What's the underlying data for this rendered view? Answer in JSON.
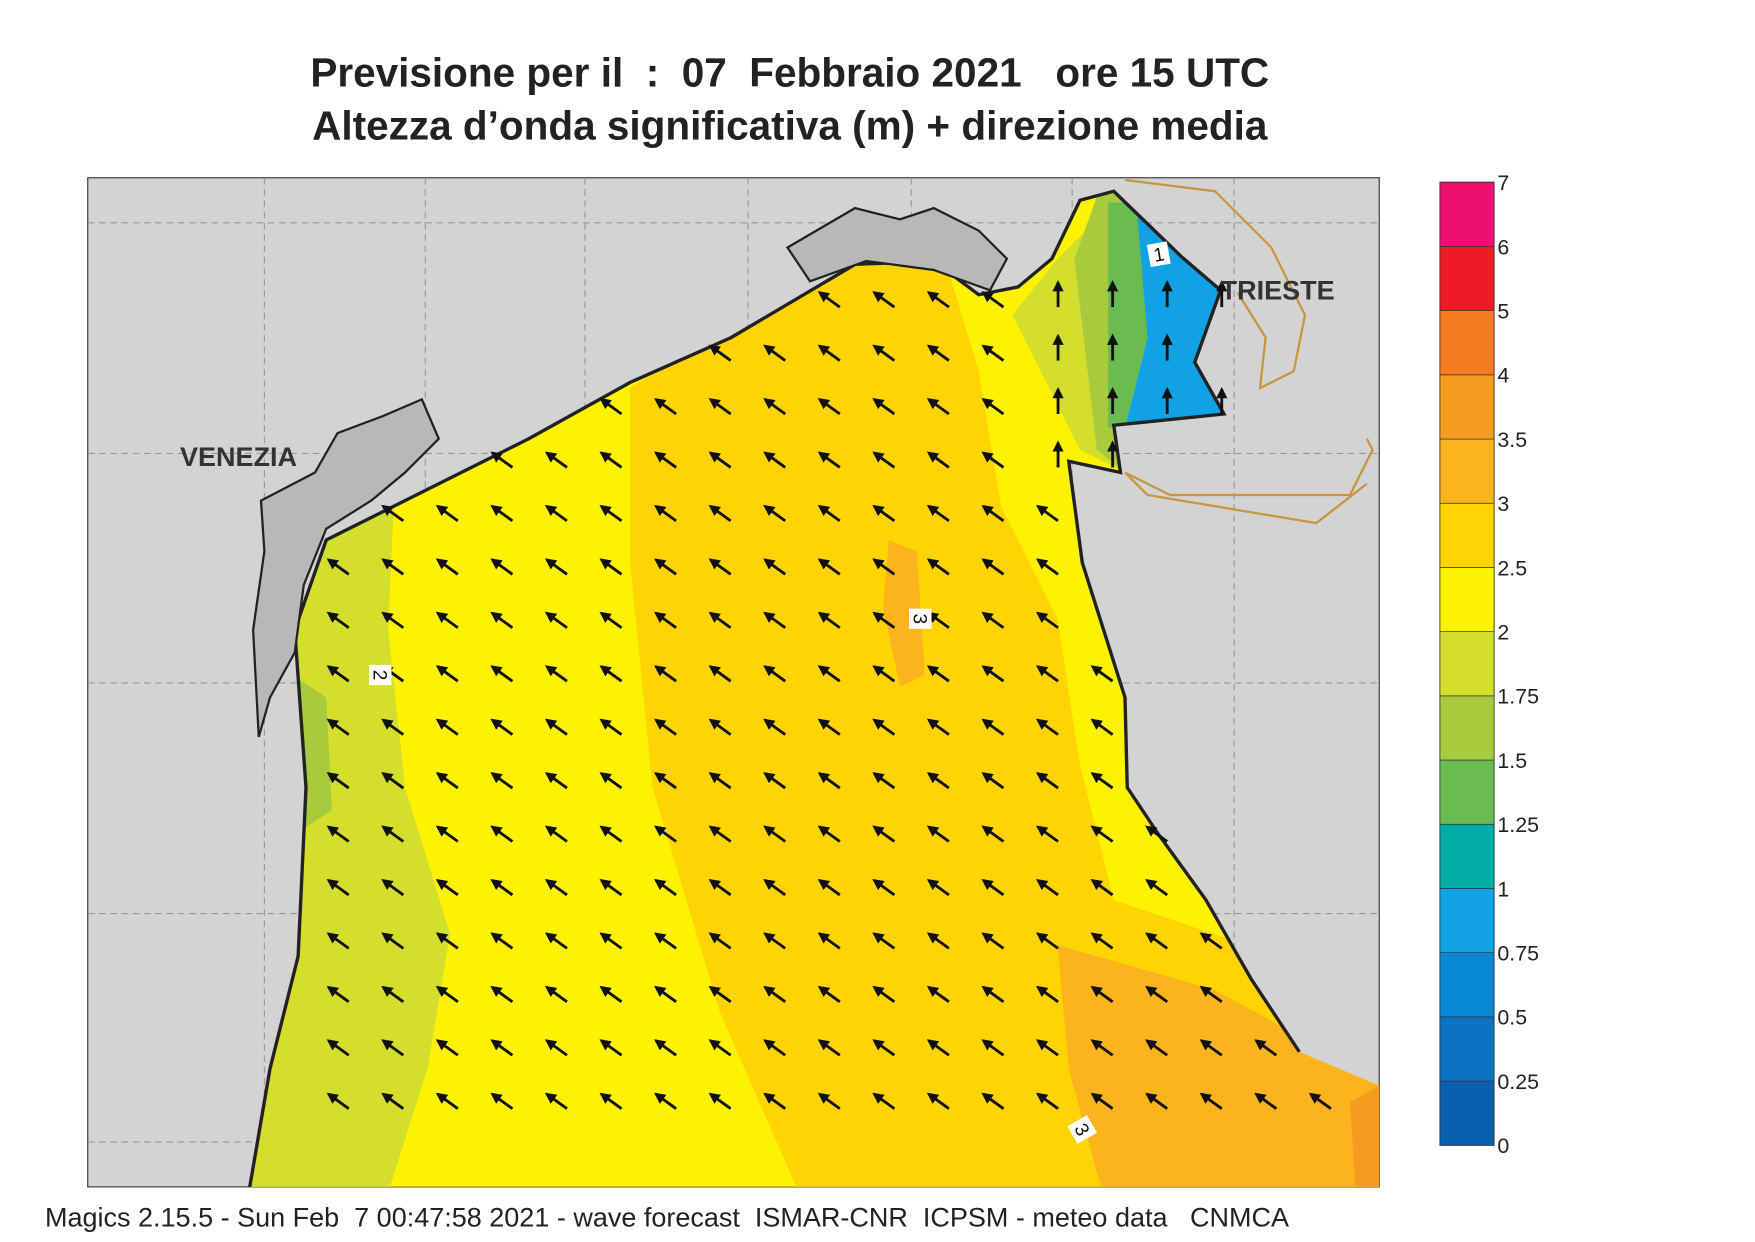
{
  "header": {
    "title": "Previsione per il  :  07  Febbraio 2021   ore 15 UTC",
    "subtitle": "Altezza d’onda significativa (m) + direzione media"
  },
  "map": {
    "cities": [
      "VENEZIA",
      "TRIESTE"
    ],
    "contour_labels": [
      "3",
      "2",
      "1",
      "3"
    ]
  },
  "legend": {
    "levels": [
      0,
      0.25,
      0.5,
      0.75,
      1,
      1.25,
      1.5,
      1.75,
      2,
      2.5,
      3,
      3.5,
      4,
      5,
      6,
      7
    ],
    "colors": [
      "#0a5fb0",
      "#0b72c4",
      "#0a88d6",
      "#10a2e4",
      "#00aca6",
      "#6abb50",
      "#a7cb3c",
      "#d4de2c",
      "#fff200",
      "#ffd400",
      "#fbb41e",
      "#f79a20",
      "#f47b22",
      "#ed1c24",
      "#ec1070"
    ]
  },
  "footer": "Magics 2.15.5 - Sun Feb  7 00:47:58 2021 - wave forecast  ISMAR-CNR  ICPSM - meteo data   CNMCA"
}
